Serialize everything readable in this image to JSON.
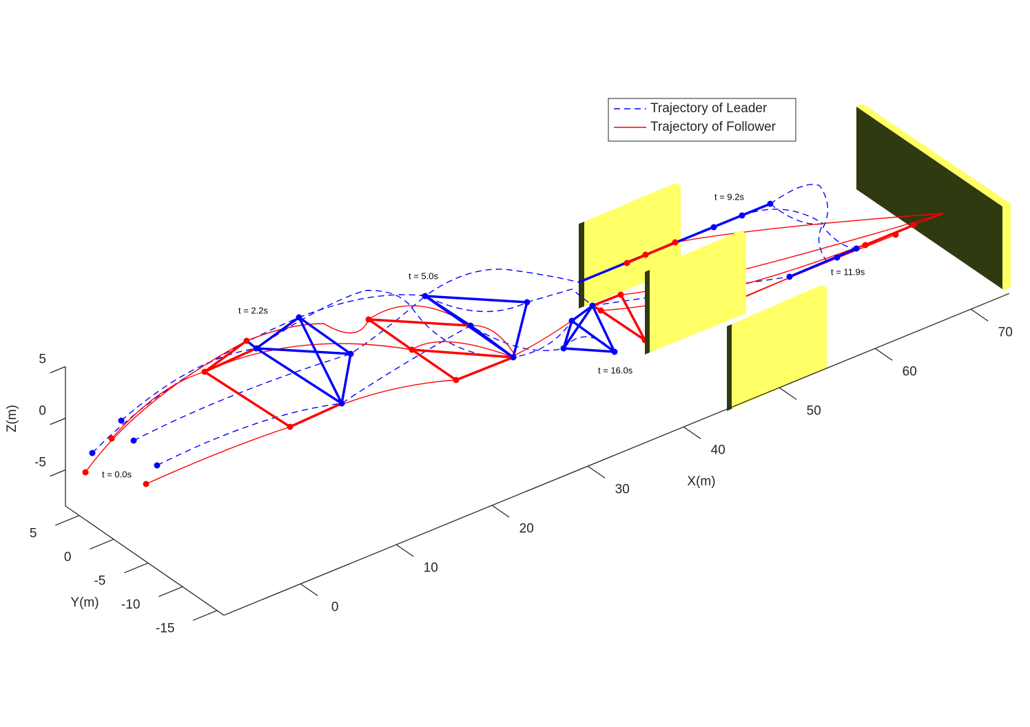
{
  "chart_data": {
    "type": "line3d",
    "xlabel": "X(m)",
    "ylabel": "Y(m)",
    "zlabel": "Z(m)",
    "xlim": [
      -8,
      74
    ],
    "ylim": [
      -16,
      7
    ],
    "zlim": [
      -8.5,
      5
    ],
    "xticks": [
      0,
      10,
      20,
      30,
      40,
      50,
      60,
      70
    ],
    "yticks": [
      -15,
      -10,
      -5,
      0,
      5
    ],
    "zticks": [
      -5,
      0,
      5
    ],
    "series": [
      {
        "name": "Trajectory of Leader",
        "color": "#0000ff",
        "line_style": "--"
      },
      {
        "name": "Trajectory of Follower",
        "color": "#ff0000",
        "line_style": "-"
      }
    ],
    "legend": "upper right",
    "annotations": [
      "t = 0.0s",
      "t = 2.2s",
      "t = 5.0s",
      "t = 9.2s",
      "t = 11.9s",
      "t = 16.0s"
    ]
  }
}
